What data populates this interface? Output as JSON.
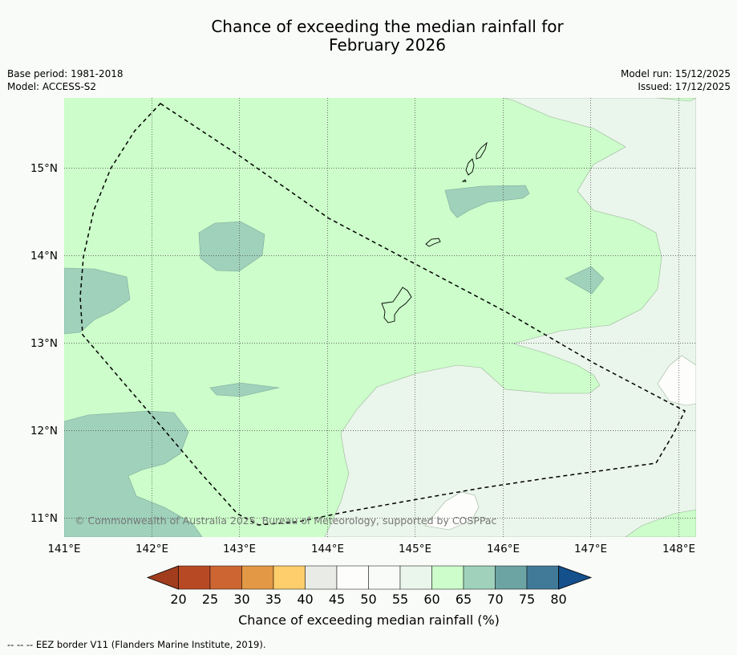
{
  "title": {
    "line1": "Chance of exceeding the median rainfall for",
    "line2": "February 2026"
  },
  "meta": {
    "base_period": "Base period: 1981-2018",
    "model": "Model: ACCESS-S2",
    "model_run": "Model run: 15/12/2025",
    "issued": "Issued: 17/12/2025"
  },
  "map": {
    "lon_ticks": [
      "141°E",
      "142°E",
      "143°E",
      "144°E",
      "145°E",
      "146°E",
      "147°E",
      "148°E"
    ],
    "lat_ticks": [
      "15°N",
      "14°N",
      "13°N",
      "12°N",
      "11°N"
    ],
    "copyright": "© Commonwealth of Australia 2025, Bureau of Meteorology, supported by COSPPac",
    "base_color": "#ccfdca",
    "lon_range": [
      141,
      148.2
    ],
    "lat_range": [
      10.8,
      15.8
    ],
    "grid": "dotted",
    "boundary": "EEZ border, dashed line"
  },
  "colorbar": {
    "ticks": [
      "20",
      "25",
      "30",
      "35",
      "40",
      "45",
      "50",
      "55",
      "60",
      "65",
      "70",
      "75",
      "80"
    ],
    "colors": [
      "#a13d1d",
      "#b84925",
      "#cd6533",
      "#e29845",
      "#fdce6b",
      "#e9ebe7",
      "#fdfefc",
      "#f8fbf8",
      "#eaf5eb",
      "#ccfdca",
      "#9fd1bb",
      "#6ba4a2",
      "#417a98",
      "#13508c"
    ],
    "label": "Chance of exceeding median rainfall (%)"
  },
  "footnote": "--  --  -- EEZ border V11 (Flanders Marine Institute, 2019)."
}
